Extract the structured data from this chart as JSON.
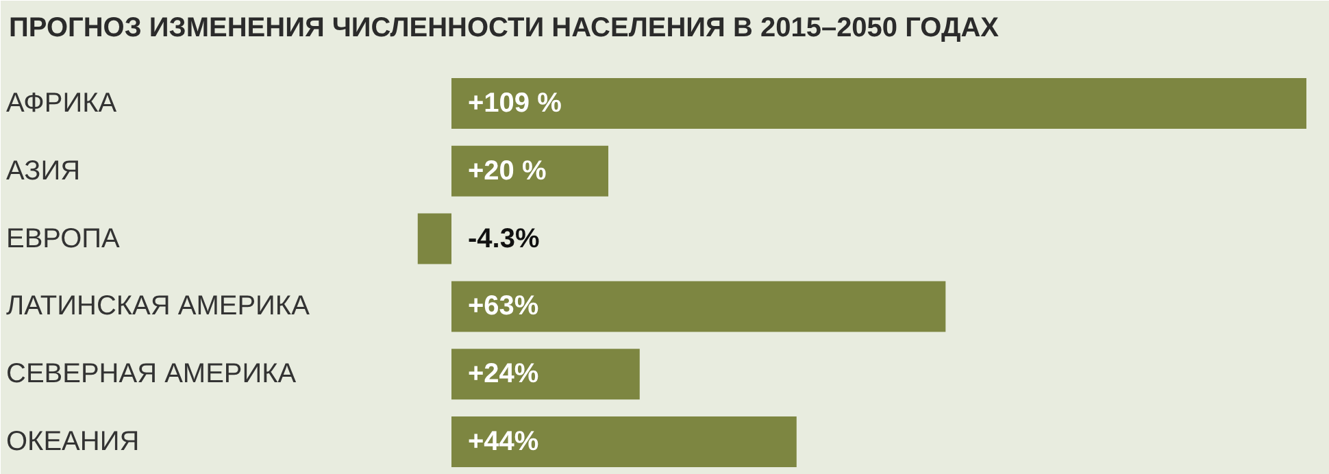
{
  "chart_data": {
    "type": "bar",
    "orientation": "horizontal",
    "title": "ПРОГНОЗ ИЗМЕНЕНИЯ ЧИСЛЕННОСТИ НАСЕЛЕНИЯ В 2015–2050 ГОДАХ",
    "categories": [
      "АФРИКА",
      "АЗИЯ",
      "ЕВРОПА",
      "ЛАТИНСКАЯ АМЕРИКА",
      "СЕВЕРНАЯ АМЕРИКА",
      "ОКЕАНИЯ"
    ],
    "values": [
      109,
      20,
      -4.3,
      63,
      24,
      44
    ],
    "value_labels": [
      "+109 %",
      "+20 %",
      "-4.3%",
      "+63%",
      "+24%",
      "+44%"
    ],
    "color": "#7d8641"
  }
}
